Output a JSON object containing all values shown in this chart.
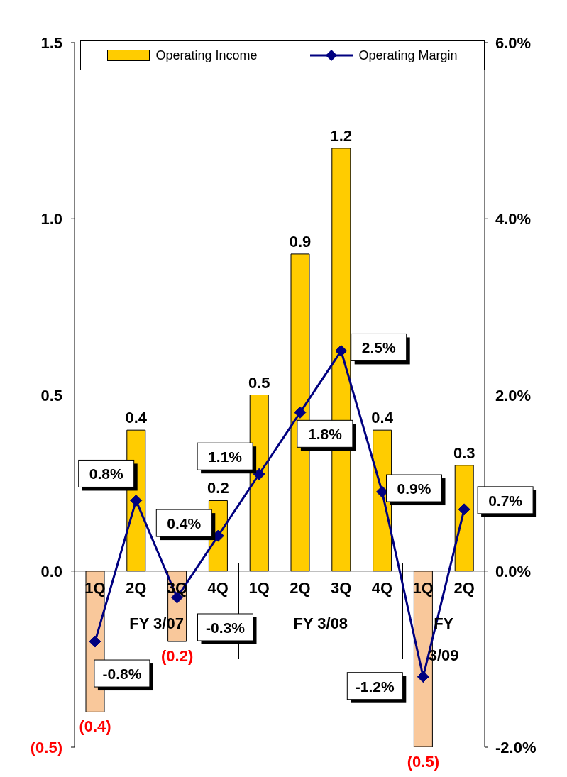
{
  "chart_data": {
    "type": "bar",
    "categories": [
      "1Q",
      "2Q",
      "3Q",
      "4Q",
      "1Q",
      "2Q",
      "3Q",
      "4Q",
      "1Q",
      "2Q"
    ],
    "series": [
      {
        "name": "Operating Income",
        "color": "#ffcc00",
        "colors": [
          "#f9c89b",
          "#ffcc00",
          "#f9c89b",
          "#ffcc00",
          "#ffcc00",
          "#ffcc00",
          "#ffcc00",
          "#ffcc00",
          "#f9c89b",
          "#ffcc00"
        ],
        "values": [
          -0.4,
          0.4,
          -0.2,
          0.2,
          0.5,
          0.9,
          1.2,
          0.4,
          -0.5,
          0.3
        ],
        "value_labels": [
          "(0.4)",
          "0.4",
          "(0.2)",
          "0.2",
          "0.5",
          "0.9",
          "1.2",
          "0.4",
          "(0.5)",
          "0.3"
        ]
      },
      {
        "name": "Operating Margin",
        "type": "line",
        "axis": "y2",
        "color": "#000080",
        "values": [
          -0.8,
          0.8,
          -0.3,
          0.4,
          1.1,
          1.8,
          2.5,
          0.9,
          -1.2,
          0.7
        ],
        "value_labels": [
          "-0.8%",
          "0.8%",
          "-0.3%",
          "0.4%",
          "1.1%",
          "1.8%",
          "2.5%",
          "0.9%",
          "-1.2%",
          "0.7%"
        ]
      }
    ],
    "ylim": [
      -0.5,
      1.5
    ],
    "yticks": [
      {
        "value": -0.5,
        "label": "(0.5)"
      },
      {
        "value": 0,
        "label": "0.0"
      },
      {
        "value": 0.5,
        "label": "0.5"
      },
      {
        "value": 1,
        "label": "1.0"
      },
      {
        "value": 1.5,
        "label": "1.5"
      }
    ],
    "y2lim": [
      -2,
      6
    ],
    "y2ticks": [
      {
        "value": -2,
        "label": "-2.0%"
      },
      {
        "value": 0,
        "label": "0.0%"
      },
      {
        "value": 2,
        "label": "2.0%"
      },
      {
        "value": 4,
        "label": "4.0%"
      },
      {
        "value": 6,
        "label": "6.0%"
      }
    ],
    "annotations": [
      "FY 3/07",
      "FY 3/08",
      "FY 3/09"
    ],
    "marker": "diamond",
    "legend": "top",
    "grid": false
  }
}
